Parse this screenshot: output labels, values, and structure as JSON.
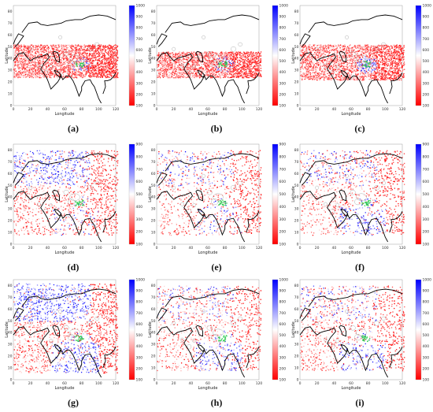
{
  "colors": {
    "low": "#ff0000",
    "mid": "#ffffff",
    "high": "#0000ff",
    "accent": "#33cc55",
    "coast": "#000000"
  },
  "chart_data": [
    {
      "type": "scatter",
      "label": "(a)",
      "xlabel": "Longitude",
      "ylabel": "Latitude",
      "xlim": [
        0,
        120
      ],
      "ylim": [
        0,
        85
      ],
      "xticks": [
        "0",
        "20",
        "40",
        "60",
        "80",
        "100",
        "120"
      ],
      "yticks": [
        "0",
        "10",
        "20",
        "30",
        "40",
        "50",
        "60",
        "70",
        "80"
      ],
      "colorbar": {
        "min": 100,
        "max": 1000,
        "ticks": [
          "100",
          "200",
          "300",
          "400",
          "500",
          "600",
          "700",
          "800",
          "900",
          "1000"
        ]
      },
      "pattern": "red-band"
    },
    {
      "type": "scatter",
      "label": "(b)",
      "xlabel": "Longitude",
      "ylabel": "Latitude",
      "xlim": [
        0,
        120
      ],
      "ylim": [
        0,
        85
      ],
      "xticks": [
        "0",
        "20",
        "40",
        "60",
        "80",
        "100",
        "120"
      ],
      "yticks": [
        "0",
        "10",
        "20",
        "30",
        "40",
        "50",
        "60",
        "70",
        "80"
      ],
      "colorbar": {
        "min": 100,
        "max": 1000,
        "ticks": [
          "100",
          "200",
          "300",
          "400",
          "500",
          "600",
          "700",
          "800",
          "900",
          "1000"
        ]
      },
      "pattern": "red-band-thin"
    },
    {
      "type": "scatter",
      "label": "(c)",
      "xlabel": "Longitude",
      "ylabel": "Latitude",
      "xlim": [
        0,
        120
      ],
      "ylim": [
        0,
        85
      ],
      "xticks": [
        "0",
        "20",
        "40",
        "60",
        "80",
        "100",
        "120"
      ],
      "yticks": [
        "0",
        "10",
        "20",
        "30",
        "40",
        "50",
        "60",
        "70",
        "80"
      ],
      "colorbar": {
        "min": 100,
        "max": 1000,
        "ticks": [
          "100",
          "200",
          "300",
          "400",
          "500",
          "600",
          "700",
          "800",
          "900",
          "1000"
        ]
      },
      "pattern": "red-band-blue-core"
    },
    {
      "type": "scatter",
      "label": "(d)",
      "xlabel": "Longitude",
      "ylabel": "Latitude",
      "xlim": [
        0,
        120
      ],
      "ylim": [
        0,
        85
      ],
      "xticks": [
        "0",
        "20",
        "40",
        "60",
        "80",
        "100",
        "120"
      ],
      "yticks": [
        "0",
        "10",
        "20",
        "30",
        "40",
        "50",
        "60",
        "70",
        "80"
      ],
      "colorbar": {
        "min": 100,
        "max": 900,
        "ticks": [
          "100",
          "200",
          "300",
          "400",
          "500",
          "600",
          "700",
          "800",
          "900"
        ]
      },
      "pattern": "mixed-blue-north"
    },
    {
      "type": "scatter",
      "label": "(e)",
      "xlabel": "Longitude",
      "ylabel": "Latitude",
      "xlim": [
        0,
        120
      ],
      "ylim": [
        0,
        85
      ],
      "xticks": [
        "0",
        "20",
        "40",
        "60",
        "80",
        "100",
        "120"
      ],
      "yticks": [
        "0",
        "10",
        "20",
        "30",
        "40",
        "50",
        "60",
        "70",
        "80"
      ],
      "colorbar": {
        "min": 100,
        "max": 900,
        "ticks": [
          "100",
          "200",
          "300",
          "400",
          "500",
          "600",
          "700",
          "800",
          "900"
        ]
      },
      "pattern": "mixed"
    },
    {
      "type": "scatter",
      "label": "(f)",
      "xlabel": "Longitude",
      "ylabel": "Latitude",
      "xlim": [
        0,
        120
      ],
      "ylim": [
        0,
        85
      ],
      "xticks": [
        "0",
        "20",
        "40",
        "60",
        "80",
        "100",
        "120"
      ],
      "yticks": [
        "0",
        "10",
        "20",
        "30",
        "40",
        "50",
        "60",
        "70",
        "80"
      ],
      "colorbar": {
        "min": 100,
        "max": 900,
        "ticks": [
          "100",
          "200",
          "300",
          "400",
          "500",
          "600",
          "700",
          "800",
          "900"
        ]
      },
      "pattern": "mixed-blue-south"
    },
    {
      "type": "scatter",
      "label": "(g)",
      "xlabel": "Longitude",
      "ylabel": "Latitude",
      "xlim": [
        0,
        120
      ],
      "ylim": [
        0,
        85
      ],
      "xticks": [
        "0",
        "20",
        "40",
        "60",
        "80",
        "100",
        "120"
      ],
      "yticks": [
        "0",
        "10",
        "20",
        "30",
        "40",
        "50",
        "60",
        "70",
        "80"
      ],
      "colorbar": {
        "min": 100,
        "max": 1000,
        "ticks": [
          "100",
          "200",
          "300",
          "400",
          "500",
          "600",
          "700",
          "800",
          "900",
          "1000"
        ]
      },
      "pattern": "blue-dominant"
    },
    {
      "type": "scatter",
      "label": "(h)",
      "xlabel": "Longitude",
      "ylabel": "Latitude",
      "xlim": [
        0,
        120
      ],
      "ylim": [
        0,
        85
      ],
      "xticks": [
        "0",
        "20",
        "40",
        "60",
        "80",
        "100",
        "120"
      ],
      "yticks": [
        "0",
        "10",
        "20",
        "30",
        "40",
        "50",
        "60",
        "70",
        "80"
      ],
      "colorbar": {
        "min": 100,
        "max": 1000,
        "ticks": [
          "100",
          "200",
          "300",
          "400",
          "500",
          "600",
          "700",
          "800",
          "900",
          "1000"
        ]
      },
      "pattern": "mixed-blue-south"
    },
    {
      "type": "scatter",
      "label": "(i)",
      "xlabel": "Longitude",
      "ylabel": "Latitude",
      "xlim": [
        0,
        120
      ],
      "ylim": [
        0,
        85
      ],
      "xticks": [
        "0",
        "20",
        "40",
        "60",
        "80",
        "100",
        "120"
      ],
      "yticks": [
        "0",
        "10",
        "20",
        "30",
        "40",
        "50",
        "60",
        "70",
        "80"
      ],
      "colorbar": {
        "min": 100,
        "max": 1000,
        "ticks": [
          "100",
          "200",
          "300",
          "400",
          "500",
          "600",
          "700",
          "800",
          "900",
          "1000"
        ]
      },
      "pattern": "mixed-blue-south"
    }
  ]
}
